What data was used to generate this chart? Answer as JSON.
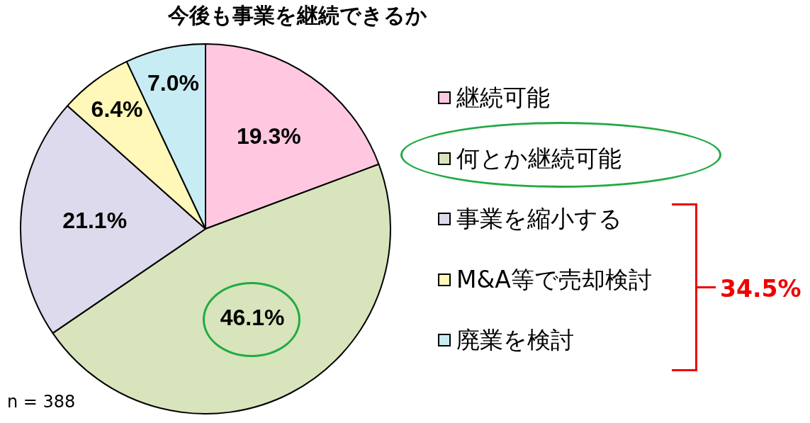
{
  "chart_data": {
    "type": "pie",
    "title": "今後も事業を継続できるか",
    "categories": [
      "継続可能",
      "何とか継続可能",
      "事業を縮小する",
      "M&A等で売却検討",
      "廃業を検討"
    ],
    "values": [
      19.3,
      46.1,
      21.1,
      6.4,
      7.0
    ],
    "colors": [
      "#ffc8e0",
      "#d8e4bc",
      "#dcdaec",
      "#fff8b8",
      "#c8ecf4"
    ],
    "value_labels": [
      "19.3%",
      "46.1%",
      "21.1%",
      "6.4%",
      "7.0%"
    ],
    "legend": "right",
    "annotations": [
      "34.5%",
      "n = 388"
    ]
  }
}
